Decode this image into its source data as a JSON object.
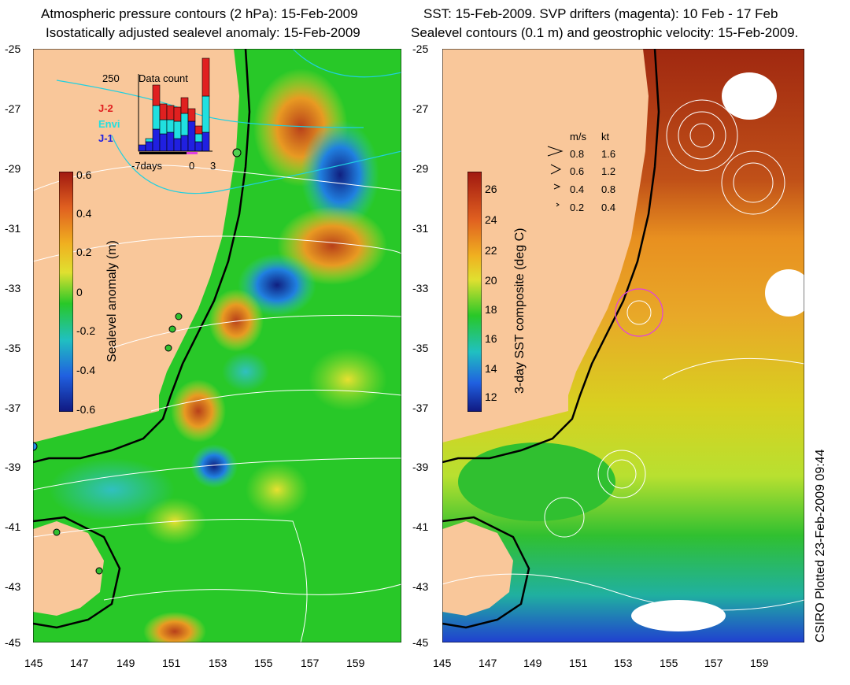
{
  "left_panel": {
    "title_line1": "Atmospheric pressure contours (2 hPa): 15-Feb-2009",
    "title_line2": "Isostatically adjusted sealevel anomaly: 15-Feb-2009",
    "colorbar_label": "Sealevel anomaly (m)",
    "colorbar_ticks": [
      "0.6",
      "0.4",
      "0.2",
      "0",
      "-0.2",
      "-0.4",
      "-0.6"
    ],
    "inset": {
      "title": "Data count",
      "max_label": "250",
      "x_labels": [
        "-7days",
        "0",
        "3"
      ],
      "legend": [
        {
          "label": "J-2",
          "color": "#e02020"
        },
        {
          "label": "Envi",
          "color": "#20e0e0"
        },
        {
          "label": "J-1",
          "color": "#2020e0"
        }
      ]
    }
  },
  "right_panel": {
    "title_line1": "SST: 15-Feb-2009. SVP drifters (magenta): 10 Feb - 17 Feb",
    "title_line2": "Sealevel contours (0.1 m) and geostrophic velocity: 15-Feb-2009.",
    "colorbar_label": "3-day SST composite (deg C)",
    "colorbar_ticks": [
      "26",
      "24",
      "22",
      "20",
      "18",
      "16",
      "14",
      "12"
    ],
    "velocity_key": {
      "header_ms": "m/s",
      "header_kt": "kt",
      "rows": [
        {
          "ms": "0.8",
          "kt": "1.6"
        },
        {
          "ms": "0.6",
          "kt": "1.2"
        },
        {
          "ms": "0.4",
          "kt": "0.8"
        },
        {
          "ms": "0.2",
          "kt": "0.4"
        }
      ]
    }
  },
  "axes": {
    "lat_ticks": [
      "-25",
      "-27",
      "-29",
      "-31",
      "-33",
      "-35",
      "-37",
      "-39",
      "-41",
      "-43",
      "-45"
    ],
    "lon_ticks": [
      "145",
      "147",
      "149",
      "151",
      "153",
      "155",
      "157",
      "159"
    ]
  },
  "credit": "CSIRO Plotted 23-Feb-2009 09:44",
  "colors": {
    "land": "#f9c79a",
    "ocean_base": "#22c422",
    "magenta": "#e040e0",
    "contour": "#ffffff",
    "pressure_contour": "#20d0e0"
  }
}
